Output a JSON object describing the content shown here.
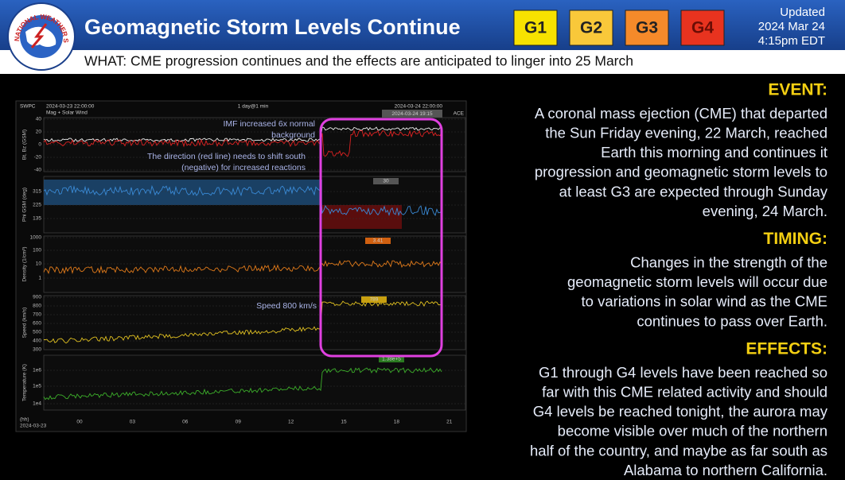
{
  "header": {
    "title": "Geomagnetic Storm Levels Continue",
    "logo_text": "NATIONAL WEATHER SERVICE",
    "badges": [
      "G1",
      "G2",
      "G3",
      "G4"
    ],
    "updated": [
      "Updated",
      "2024 Mar 24",
      "4:15pm EDT"
    ],
    "subtitle": "WHAT: CME progression continues and the effects are anticipated to linger into 25 March"
  },
  "plot": {
    "source": "SWPC",
    "subtitle": "Mag + Solar Wind",
    "start": "2024-03-23 22:00:00",
    "interval": "1 day@1 min",
    "end": "2024-03-24 22:00:00",
    "current": "2024-03-24 19:15",
    "instrument": "ACE",
    "panels": [
      {
        "title": "Bt, Bz (GSM)",
        "ticks": [
          40,
          20,
          0,
          -20,
          -40
        ]
      },
      {
        "title": "Phi GSM (deg)",
        "ticks": [
          315,
          225,
          135
        ]
      },
      {
        "title": "Density (1/cm³)",
        "ticks": [
          1000,
          100,
          10,
          1
        ]
      },
      {
        "title": "Speed (km/s)",
        "ticks": [
          900,
          800,
          700,
          600,
          500,
          400,
          300
        ]
      },
      {
        "title": "Temperature (K)",
        "ticks": [
          "1e6",
          "1e5",
          "1e4"
        ]
      }
    ],
    "readouts": [
      "30",
      "3.41",
      "789",
      "1.38e+5"
    ],
    "hours": [
      "00",
      "03",
      "06",
      "09",
      "12",
      "15",
      "18",
      "21"
    ],
    "axis_unit": "(hh)",
    "axis_date": "2024-03-23",
    "annotations": {
      "imf": [
        "IMF increased 6x normal",
        "background"
      ],
      "direction": [
        "The direction (red line) needs to shift south",
        "(negative) for increased reactions"
      ],
      "speed": "Speed 800 km/s"
    }
  },
  "sections": [
    {
      "heading": "EVENT:",
      "lines": [
        "A coronal mass ejection (CME) that departed",
        "the Sun Friday evening, 22 March, reached",
        "Earth this morning and continues it",
        "progression and geomagnetic storm levels to",
        "at least G3 are expected through Sunday",
        "evening, 24 March."
      ]
    },
    {
      "heading": "TIMING:",
      "lines": [
        "Changes  in the strength of the",
        "geomagnetic storm levels will occur due",
        "to variations in solar wind as the CME",
        "continues to pass over Earth."
      ]
    },
    {
      "heading": "EFFECTS:",
      "lines": [
        "G1 through G4 levels have been reached so",
        "far with this CME related activity and should",
        "G4 levels be reached tonight, the aurora may",
        "become visible over much of the northern",
        "half of the country, and maybe as far south as",
        "Alabama to northern California."
      ]
    }
  ]
}
